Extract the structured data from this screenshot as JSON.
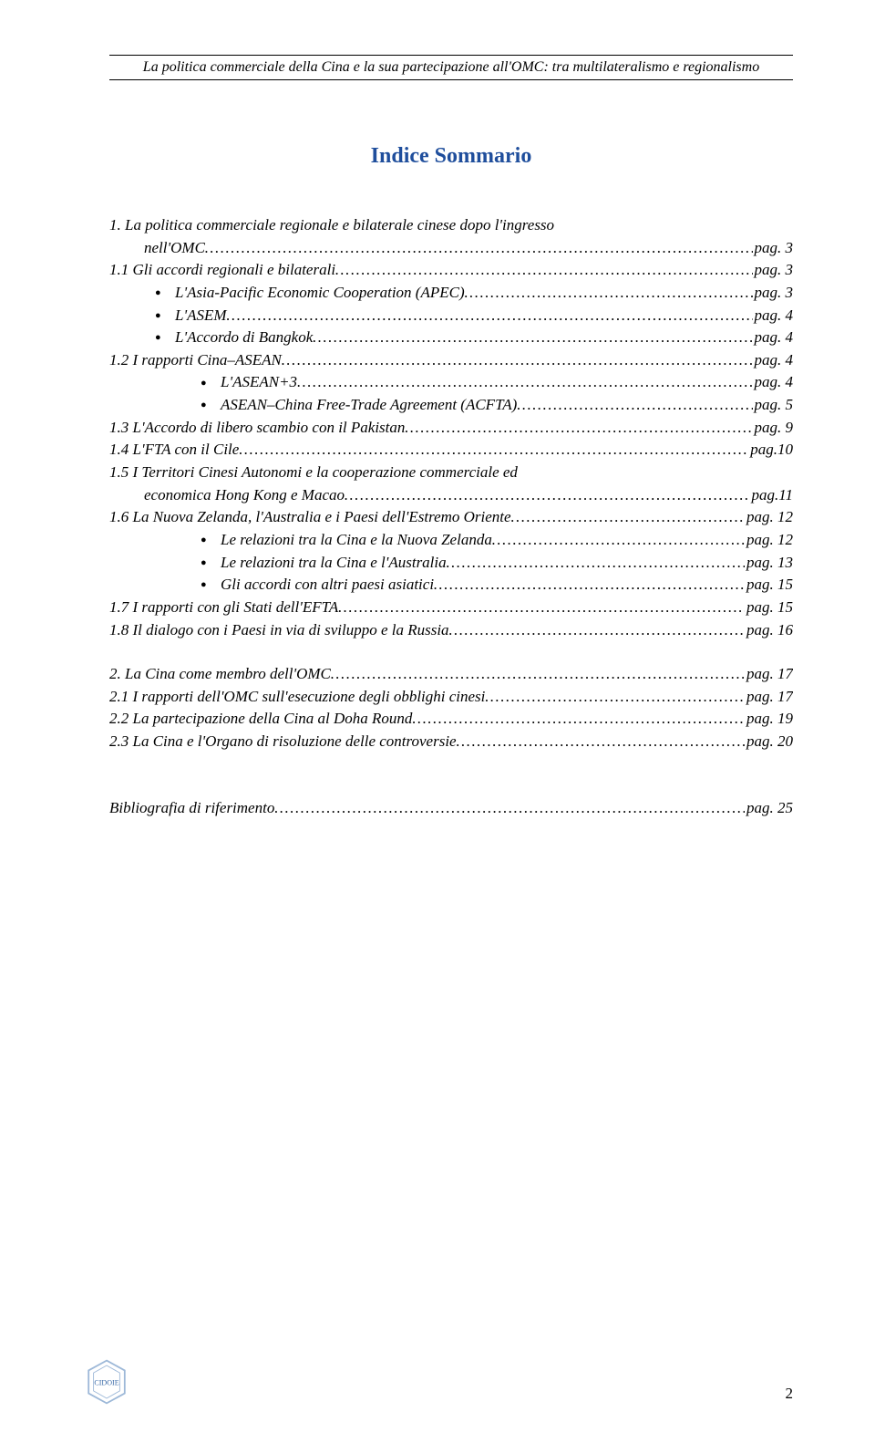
{
  "header": "La politica commerciale della Cina e la sua partecipazione all'OMC: tra multilateralismo e regionalismo",
  "title": "Indice Sommario",
  "pagePrefix": "pag.",
  "toc": [
    {
      "level": 0,
      "text": "1.  La politica commerciale regionale e bilaterale cinese dopo l'ingresso",
      "wrap": true,
      "wrapText": "nell'OMC",
      "page": "3"
    },
    {
      "level": 0,
      "text": "1.1 Gli accordi regionali e bilaterali",
      "page": "3"
    },
    {
      "level": 1,
      "bullet": true,
      "text": "L'Asia-Pacific Economic Cooperation (APEC)",
      "page": "3"
    },
    {
      "level": 1,
      "bullet": true,
      "text": "L'ASEM",
      "page": "4"
    },
    {
      "level": 1,
      "bullet": true,
      "text": "L'Accordo di Bangkok",
      "page": "4"
    },
    {
      "level": 0,
      "text": "1.2 I rapporti Cina–ASEAN",
      "page": "4"
    },
    {
      "level": 2,
      "bullet": true,
      "text": "L'ASEAN+3",
      "page": "4"
    },
    {
      "level": 2,
      "bullet": true,
      "text": "ASEAN–China Free-Trade Agreement (ACFTA)",
      "page": "5"
    },
    {
      "level": 0,
      "text": "1.3 L'Accordo di libero scambio con il Pakistan",
      "page": "9"
    },
    {
      "level": 0,
      "text": "1.4 L'FTA con il Cile",
      "page": "10",
      "tight": true
    },
    {
      "level": 0,
      "text": "1.5 I Territori Cinesi Autonomi e la cooperazione commerciale ed",
      "wrap": true,
      "wrapText": "economica Hong Kong e Macao",
      "page": "11",
      "tight": true
    },
    {
      "level": 0,
      "text": "1.6 La Nuova Zelanda, l'Australia e i Paesi dell'Estremo Oriente",
      "page": "12"
    },
    {
      "level": 2,
      "bullet": true,
      "text": "Le relazioni tra  la Cina e la Nuova Zelanda",
      "page": "12"
    },
    {
      "level": 2,
      "bullet": true,
      "text": "Le relazioni tra la Cina e l'Australia",
      "page": "13"
    },
    {
      "level": 2,
      "bullet": true,
      "text": "Gli accordi con altri paesi asiatici",
      "page": "15"
    },
    {
      "level": 0,
      "text": "1.7  I rapporti con gli Stati dell'EFTA",
      "page": "15"
    },
    {
      "level": 0,
      "text": "1.8 Il dialogo con i Paesi in via di sviluppo e la Russia",
      "page": "16"
    }
  ],
  "toc2": [
    {
      "level": 0,
      "text": "2. La Cina come membro dell'OMC",
      "page": "17"
    },
    {
      "level": 0,
      "text": "2.1 I rapporti dell'OMC sull'esecuzione degli obblighi cinesi",
      "page": "17"
    },
    {
      "level": 0,
      "text": "2.2 La partecipazione della Cina al Doha Round",
      "page": "19"
    },
    {
      "level": 0,
      "text": "2.3 La Cina e l'Organo di risoluzione delle controversie",
      "page": "20"
    }
  ],
  "biblio": {
    "text": "Bibliografia di riferimento",
    "page": "25"
  },
  "logoText": "CIDOIE",
  "pageNumber": "2",
  "colors": {
    "title": "#1f4e9c",
    "logoStroke": "#9db8d8",
    "logoText": "#3a6aa8"
  }
}
